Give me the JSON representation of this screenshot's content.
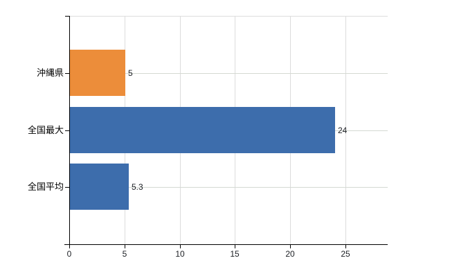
{
  "chart_data": {
    "type": "bar",
    "orientation": "horizontal",
    "title": "",
    "xlabel": "",
    "ylabel": "",
    "categories": [
      "沖縄県",
      "全国最大",
      "全国平均"
    ],
    "values": [
      5,
      24,
      5.3
    ],
    "value_labels": [
      "5",
      "24",
      "5.3"
    ],
    "series": [
      {
        "name": "沖縄県",
        "values": [
          5
        ],
        "color": "#ec8d3a"
      },
      {
        "name": "全国",
        "values": [
          24,
          5.3
        ],
        "color": "#3d6dac"
      }
    ],
    "bar_colors": [
      "#ec8d3a",
      "#3d6dac",
      "#3d6dac"
    ],
    "x_ticks": [
      "0",
      "5",
      "10",
      "15",
      "20",
      "25"
    ],
    "x_tick_values": [
      0,
      5,
      10,
      15,
      20,
      25
    ],
    "xlim": [
      0,
      28.8
    ],
    "grid": true,
    "legend": "none"
  },
  "colors": {
    "bar_orange": "#ec8d3a",
    "bar_blue": "#3d6dac",
    "axis": "#000000",
    "gridline_vertical": "#dcdcdc",
    "gridline_horizontal": "#d4d9d2",
    "text": "#1b1e23",
    "background": "#ffffff"
  }
}
